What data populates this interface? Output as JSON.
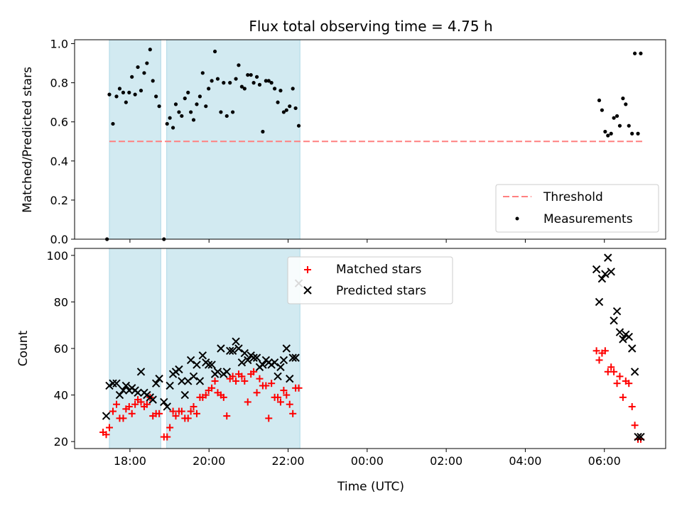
{
  "chart_data": {
    "title": "Flux total observing time = 4.75 h",
    "xlabel": "Time (UTC)",
    "x_tick_labels": [
      "18:00",
      "20:00",
      "22:00",
      "00:00",
      "02:00",
      "04:00",
      "06:00"
    ],
    "x_tick_hours": [
      18,
      20,
      22,
      24,
      26,
      28,
      30
    ],
    "x_range_hours": [
      16.6,
      31.55
    ],
    "shaded_intervals_hours": [
      [
        17.48,
        18.78
      ],
      [
        18.93,
        22.3
      ]
    ],
    "colors": {
      "shade": "#add8e6",
      "threshold": "#ff8080",
      "matched": "#ff0000",
      "predicted": "#000000",
      "measurements": "#000000"
    },
    "panels": [
      {
        "type": "scatter",
        "ylabel": "Matched/Predicted stars",
        "ylim": [
          0.0,
          1.02
        ],
        "y_ticks": [
          0.0,
          0.2,
          0.4,
          0.6,
          0.8,
          1.0
        ],
        "y_tick_labels": [
          "0.0",
          "0.2",
          "0.4",
          "0.6",
          "0.8",
          "1.0"
        ],
        "legend_position": "lower-right",
        "threshold": {
          "name": "Threshold",
          "value": 0.5,
          "x_range_hours": [
            17.48,
            31.0
          ]
        },
        "measurements": {
          "name": "Measurements",
          "x": [
            17.42,
            17.48,
            17.57,
            17.66,
            17.74,
            17.83,
            17.9,
            17.98,
            18.05,
            18.13,
            18.2,
            18.28,
            18.36,
            18.43,
            18.51,
            18.58,
            18.66,
            18.74,
            18.86,
            18.94,
            19.01,
            19.09,
            19.16,
            19.24,
            19.31,
            19.39,
            19.47,
            19.54,
            19.61,
            19.69,
            19.77,
            19.84,
            19.92,
            19.99,
            20.07,
            20.15,
            20.22,
            20.3,
            20.37,
            20.45,
            20.53,
            20.6,
            20.68,
            20.75,
            20.83,
            20.9,
            20.98,
            21.06,
            21.13,
            21.21,
            21.28,
            21.36,
            21.44,
            21.51,
            21.58,
            21.66,
            21.74,
            21.81,
            21.89,
            21.96,
            22.04,
            22.12,
            22.19,
            22.27,
            29.87,
            29.94,
            30.02,
            30.09,
            30.17,
            30.24,
            30.32,
            30.39,
            30.47,
            30.54,
            30.62,
            30.7,
            30.77,
            30.85,
            30.92
          ],
          "y": [
            0.0,
            0.74,
            0.59,
            0.73,
            0.77,
            0.75,
            0.7,
            0.75,
            0.83,
            0.74,
            0.88,
            0.76,
            0.85,
            0.9,
            0.97,
            0.81,
            0.73,
            0.68,
            0.0,
            0.59,
            0.62,
            0.57,
            0.69,
            0.65,
            0.63,
            0.72,
            0.75,
            0.65,
            0.61,
            0.69,
            0.73,
            0.85,
            0.68,
            0.77,
            0.81,
            0.96,
            0.82,
            0.65,
            0.8,
            0.63,
            0.8,
            0.65,
            0.82,
            0.89,
            0.78,
            0.77,
            0.84,
            0.84,
            0.8,
            0.83,
            0.79,
            0.55,
            0.81,
            0.81,
            0.8,
            0.77,
            0.7,
            0.76,
            0.65,
            0.66,
            0.68,
            0.77,
            0.67,
            0.58,
            0.71,
            0.66,
            0.55,
            0.53,
            0.54,
            0.62,
            0.63,
            0.58,
            0.72,
            0.69,
            0.58,
            0.54,
            0.95,
            0.54,
            0.95
          ]
        }
      },
      {
        "type": "scatter",
        "ylabel": "Count",
        "ylim": [
          17,
          103
        ],
        "y_ticks": [
          20,
          40,
          60,
          80,
          100
        ],
        "y_tick_labels": [
          "20",
          "40",
          "60",
          "80",
          "100"
        ],
        "legend_position": "top-center",
        "matched": {
          "name": "Matched stars",
          "x": [
            17.32,
            17.4,
            17.48,
            17.57,
            17.66,
            17.74,
            17.83,
            17.9,
            17.98,
            18.05,
            18.13,
            18.2,
            18.28,
            18.36,
            18.43,
            18.51,
            18.58,
            18.66,
            18.74,
            18.86,
            18.94,
            19.01,
            19.09,
            19.16,
            19.24,
            19.31,
            19.39,
            19.47,
            19.54,
            19.61,
            19.69,
            19.77,
            19.84,
            19.92,
            19.99,
            20.07,
            20.15,
            20.22,
            20.3,
            20.37,
            20.45,
            20.53,
            20.6,
            20.68,
            20.75,
            20.83,
            20.9,
            20.98,
            21.06,
            21.13,
            21.21,
            21.28,
            21.36,
            21.44,
            21.51,
            21.58,
            21.66,
            21.74,
            21.81,
            21.89,
            21.96,
            22.04,
            22.12,
            22.19,
            22.27,
            29.8,
            29.87,
            29.94,
            30.02,
            30.09,
            30.17,
            30.24,
            30.32,
            30.39,
            30.47,
            30.54,
            30.62,
            30.7,
            30.77,
            30.85,
            30.92
          ],
          "y": [
            24,
            23,
            26,
            33,
            36,
            30,
            30,
            34,
            35,
            32,
            36,
            38,
            37,
            35,
            36,
            39,
            31,
            32,
            32,
            22,
            22,
            26,
            33,
            31,
            33,
            33,
            30,
            30,
            33,
            35,
            32,
            39,
            39,
            40,
            42,
            43,
            46,
            41,
            40,
            39,
            31,
            47,
            48,
            46,
            49,
            48,
            46,
            37,
            49,
            50,
            41,
            47,
            44,
            44,
            30,
            45,
            39,
            39,
            37,
            42,
            40,
            36,
            32,
            43,
            43,
            59,
            55,
            58,
            59,
            50,
            52,
            50,
            45,
            48,
            39,
            46,
            45,
            35,
            27,
            21,
            21
          ]
        },
        "predicted": {
          "name": "Predicted stars",
          "x": [
            17.4,
            17.48,
            17.57,
            17.66,
            17.74,
            17.83,
            17.9,
            17.98,
            18.05,
            18.13,
            18.2,
            18.28,
            18.36,
            18.43,
            18.51,
            18.58,
            18.66,
            18.74,
            18.86,
            18.94,
            19.01,
            19.09,
            19.16,
            19.24,
            19.31,
            19.39,
            19.47,
            19.54,
            19.61,
            19.69,
            19.77,
            19.84,
            19.92,
            19.99,
            20.07,
            20.15,
            20.22,
            20.3,
            20.37,
            20.45,
            20.53,
            20.6,
            20.68,
            20.75,
            20.83,
            20.9,
            20.98,
            21.06,
            21.13,
            21.21,
            21.28,
            21.36,
            21.44,
            21.51,
            21.58,
            21.66,
            21.74,
            21.81,
            21.89,
            21.96,
            22.04,
            22.12,
            22.19,
            22.27,
            29.8,
            29.87,
            29.94,
            30.02,
            30.09,
            30.17,
            30.24,
            30.32,
            30.39,
            30.47,
            30.54,
            30.62,
            30.7,
            30.77,
            30.85,
            30.92
          ],
          "y": [
            31,
            44,
            45,
            45,
            40,
            42,
            44,
            42,
            43,
            42,
            41,
            50,
            41,
            40,
            39,
            38,
            45,
            47,
            37,
            35,
            44,
            49,
            50,
            51,
            46,
            40,
            46,
            55,
            48,
            53,
            46,
            57,
            54,
            53,
            53,
            49,
            50,
            60,
            49,
            50,
            59,
            59,
            63,
            60,
            54,
            58,
            55,
            57,
            56,
            56,
            52,
            53,
            55,
            54,
            53,
            54,
            48,
            52,
            55,
            60,
            47,
            56,
            56,
            88,
            94,
            80,
            90,
            92,
            99,
            93,
            72,
            76,
            67,
            64,
            66,
            65,
            60,
            50,
            22,
            22
          ]
        }
      }
    ]
  }
}
